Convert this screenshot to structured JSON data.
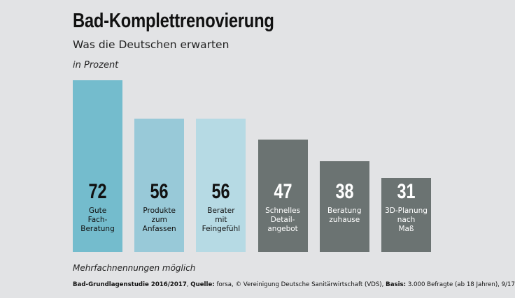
{
  "chart_data": {
    "type": "bar",
    "title": "Bad-Komplettrenovierung",
    "subtitle": "Was die Deutschen erwarten",
    "unit": "in Prozent",
    "categories": [
      "Gute\nFach-\nBeratung",
      "Produkte\nzum\nAnfassen",
      "Berater\nmit\nFeingefühl",
      "Schnelles\nDetail-\nangebot",
      "Beratung\nzuhause",
      "3D-Planung\nnach\nMaß"
    ],
    "values": [
      72,
      56,
      56,
      47,
      38,
      31
    ],
    "value_labels": [
      "72",
      "56",
      "56",
      "47",
      "38",
      "31"
    ],
    "colors": [
      "#74bccd",
      "#98c9d8",
      "#b6dae4",
      "#6b7372",
      "#6b7372",
      "#6b7372"
    ],
    "label_colors": [
      "#111111",
      "#111111",
      "#111111",
      "#ffffff",
      "#ffffff",
      "#ffffff"
    ],
    "ylim": [
      0,
      72
    ],
    "grid": false,
    "note": "Mehrfachnennungen möglich"
  },
  "source": {
    "study": "Bad-Grundlagenstudie 2016/2017",
    "sep1": ", ",
    "quelle_label": "Quelle:",
    "quelle_text": " forsa, © Vereinigung Deutsche Sanitärwirtschaft (VDS), ",
    "basis_label": "Basis:",
    "basis_text": " 3.000 Befragte (ab 18 Jahren), 9/17"
  }
}
